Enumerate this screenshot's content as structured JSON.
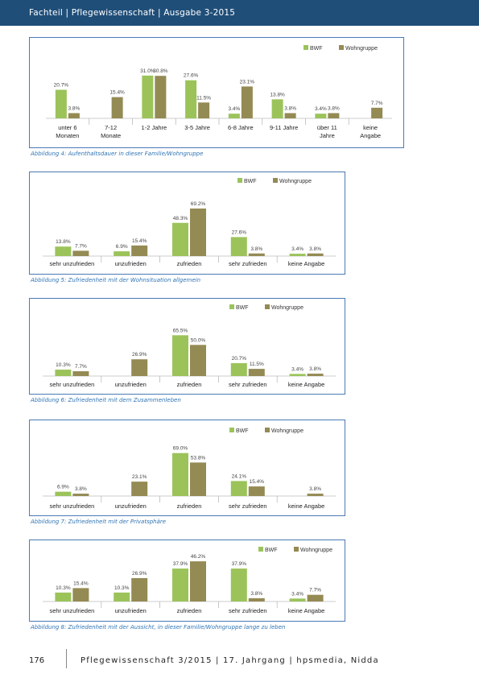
{
  "header": {
    "text": "Fachteil | Pflegewissenschaft | Ausgabe 3-2015"
  },
  "colors": {
    "bwf": "#9bc35a",
    "wohngruppe": "#948a54",
    "frame": "#4a7ab5",
    "caption": "#2e74b5",
    "header_bg": "#1f4e79"
  },
  "figures": [
    {
      "caption": "Abbildung 4: Aufenthaltsdauer in dieser Familie/Wohngruppe",
      "chart_data": {
        "type": "bar",
        "legend": [
          "BWF",
          "Wohngruppe"
        ],
        "legend_position": "top-right",
        "categories": [
          "unter 6 Monaten",
          "7-12 Monate",
          "1-2 Jahre",
          "3-5 Jahre",
          "6-8 Jahre",
          "9-11 Jahre",
          "über 11 Jahre",
          "keine Angabe"
        ],
        "series": [
          {
            "name": "BWF",
            "values": [
              20.7,
              null,
              31.0,
              27.6,
              3.4,
              13.8,
              3.4,
              null
            ],
            "labels": [
              "20.7%",
              "",
              "31.0%",
              "27.6%",
              "3.4%",
              "13.8%",
              "3.4%",
              ""
            ]
          },
          {
            "name": "Wohngruppe",
            "values": [
              3.8,
              15.4,
              30.8,
              11.5,
              23.1,
              3.8,
              3.8,
              7.7
            ],
            "labels": [
              "3.8%",
              "15.4%",
              "30.8%",
              "11.5%",
              "23.1%",
              "3.8%",
              "3.8%",
              "7.7%"
            ]
          }
        ],
        "ylim": [
          0,
          35
        ],
        "grid": false
      }
    },
    {
      "caption": "Abbildung 5: Zufriedenheit mit der Wohnsituation allgemein",
      "chart_data": {
        "type": "bar",
        "legend": [
          "BWF",
          "Wohngruppe"
        ],
        "legend_position": "top-right",
        "categories": [
          "sehr unzufrieden",
          "unzufrieden",
          "zufrieden",
          "sehr zufrieden",
          "keine Angabe"
        ],
        "series": [
          {
            "name": "BWF",
            "values": [
              13.8,
              6.9,
              48.3,
              27.6,
              3.4
            ],
            "labels": [
              "13.8%",
              "6.9%",
              "48.3%",
              "27.6%",
              "3.4%"
            ]
          },
          {
            "name": "Wohngruppe",
            "values": [
              7.7,
              15.4,
              69.2,
              3.8,
              3.8
            ],
            "labels": [
              "7.7%",
              "15.4%",
              "69.2%",
              "3.8%",
              "3.8%"
            ]
          }
        ],
        "ylim": [
          0,
          75
        ],
        "grid": false
      }
    },
    {
      "caption": "Abbildung 6: Zufriedenheit mit dem Zusammenleben",
      "chart_data": {
        "type": "bar",
        "legend": [
          "BWF",
          "Wohngruppe"
        ],
        "legend_position": "top-right",
        "categories": [
          "sehr unzufrieden",
          "unzufrieden",
          "zufrieden",
          "sehr zufrieden",
          "keine Angabe"
        ],
        "series": [
          {
            "name": "BWF",
            "values": [
              10.3,
              null,
              65.5,
              20.7,
              3.4
            ],
            "labels": [
              "10.3%",
              "",
              "65.5%",
              "20.7%",
              "3.4%"
            ]
          },
          {
            "name": "Wohngruppe",
            "values": [
              7.7,
              26.9,
              50.0,
              11.5,
              3.8
            ],
            "labels": [
              "7.7%",
              "26.9%",
              "50.0%",
              "11.5%",
              "3.8%"
            ]
          }
        ],
        "ylim": [
          0,
          75
        ],
        "grid": false
      }
    },
    {
      "caption": "Abbildung 7: Zufriedenheit mit der Privatsphäre",
      "chart_data": {
        "type": "bar",
        "legend": [
          "BWF",
          "Wohngruppe"
        ],
        "legend_position": "top-right",
        "categories": [
          "sehr unzufrieden",
          "unzufrieden",
          "zufrieden",
          "sehr zufrieden",
          "keine Angabe"
        ],
        "series": [
          {
            "name": "BWF",
            "values": [
              6.9,
              null,
              69.0,
              24.1,
              null
            ],
            "labels": [
              "6.9%",
              "",
              "69.0%",
              "24.1%",
              ""
            ]
          },
          {
            "name": "Wohngruppe",
            "values": [
              3.8,
              23.1,
              53.8,
              15.4,
              3.8
            ],
            "labels": [
              "3.8%",
              "23.1%",
              "53.8%",
              "15.4%",
              "3.8%"
            ]
          }
        ],
        "ylim": [
          0,
          75
        ],
        "grid": false
      }
    },
    {
      "caption": "Abbildung 8: Zufriedenheit mit der Aussicht, in dieser Familie/Wohngruppe lange zu leben",
      "chart_data": {
        "type": "bar",
        "legend": [
          "BWF",
          "Wohngruppe"
        ],
        "legend_position": "top-right",
        "categories": [
          "sehr unzufrieden",
          "unzufrieden",
          "zufrieden",
          "sehr zufrieden",
          "keine Angabe"
        ],
        "series": [
          {
            "name": "BWF",
            "values": [
              10.3,
              10.3,
              37.9,
              37.9,
              3.4
            ],
            "labels": [
              "10.3%",
              "10.3%",
              "37.9%",
              "37.9%",
              "3.4%"
            ]
          },
          {
            "name": "Wohngruppe",
            "values": [
              15.4,
              26.9,
              46.2,
              3.8,
              7.7
            ],
            "labels": [
              "15.4%",
              "26.9%",
              "46.2%",
              "3.8%",
              "7.7%"
            ]
          }
        ],
        "ylim": [
          0,
          50
        ],
        "grid": false
      }
    }
  ],
  "footer": {
    "page_number": "176",
    "text": "Pflegewissenschaft 3/2015 | 17. Jahrgang | hpsmedia, Nidda"
  }
}
